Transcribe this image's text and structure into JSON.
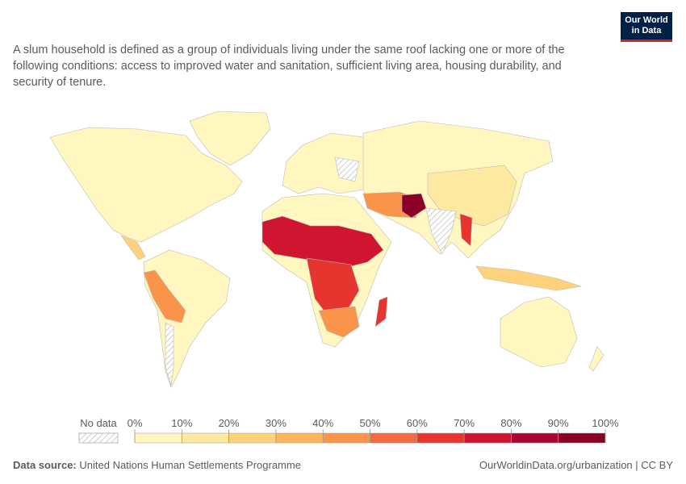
{
  "header": {
    "logo": [
      "Our World",
      "in Data"
    ],
    "subtitle": "A slum household is defined as a group of individuals living under the same roof lacking one or more of the following conditions: access to improved water and sanitation, sufficient living area, housing durability, and security of tenure."
  },
  "legend": {
    "no_data_label": "No data",
    "ticks": [
      {
        "value": 0,
        "label": "0%"
      },
      {
        "value": 10,
        "label": "10%"
      },
      {
        "value": 20,
        "label": "20%"
      },
      {
        "value": 30,
        "label": "30%"
      },
      {
        "value": 40,
        "label": "40%"
      },
      {
        "value": 50,
        "label": "50%"
      },
      {
        "value": 60,
        "label": "60%"
      },
      {
        "value": 70,
        "label": "70%"
      },
      {
        "value": 80,
        "label": "80%"
      },
      {
        "value": 90,
        "label": "90%"
      },
      {
        "value": 100,
        "label": "100%"
      }
    ],
    "colors": [
      "#fff7bf",
      "#fde9a0",
      "#fdd27a",
      "#fcb55a",
      "#f9944a",
      "#f26a3d",
      "#e6352e",
      "#cf1530",
      "#ac0630",
      "#8a0027"
    ]
  },
  "footer": {
    "source_label": "Data source:",
    "source": "United Nations Human Settlements Programme",
    "url": "OurWorldinData.org/urbanization | CC BY"
  }
}
